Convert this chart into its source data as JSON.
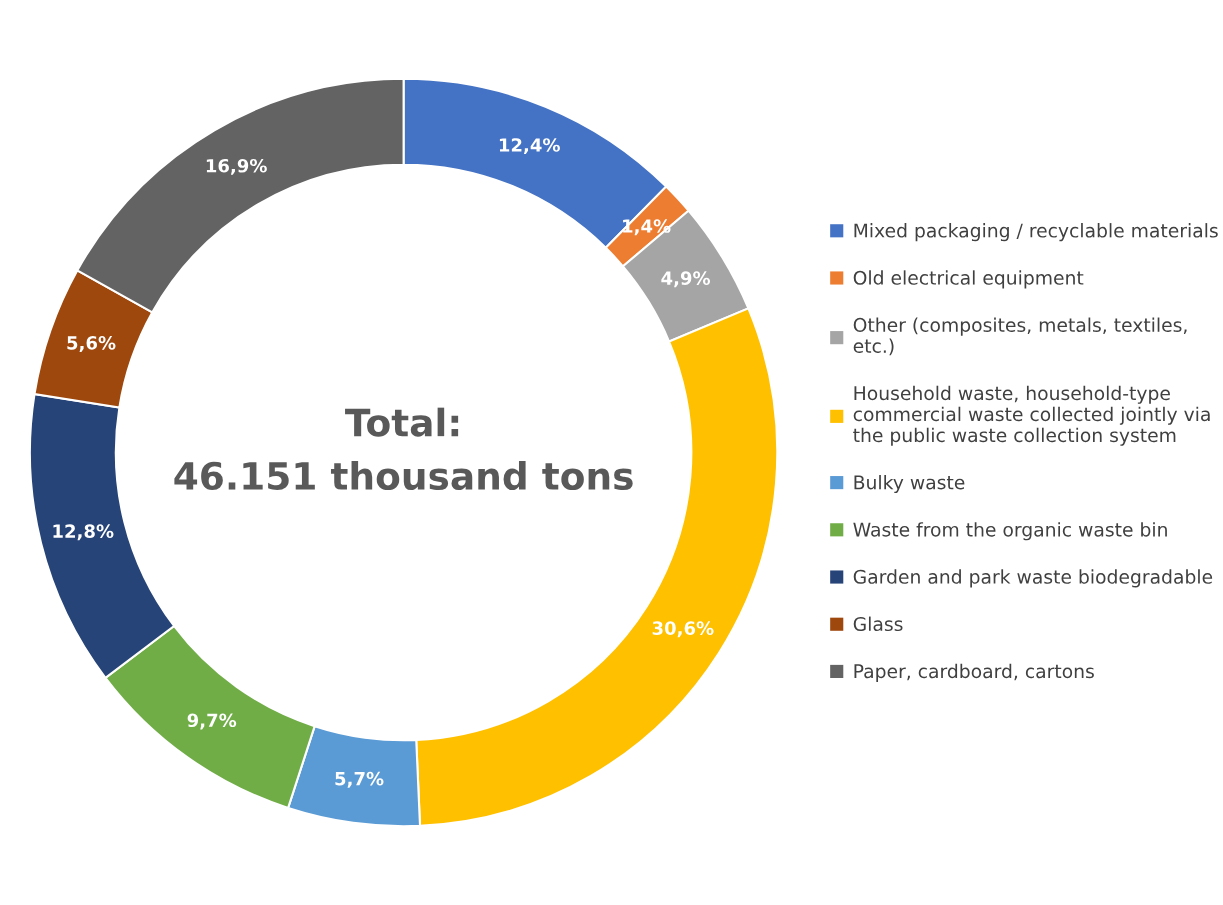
{
  "chart_data": {
    "type": "donut",
    "categories": [
      "Mixed packaging / recyclable materials",
      "Old electrical equipment",
      "Other (composites, metals, textiles,\netc.)",
      "Household waste, household-type\ncommercial waste collected jointly via\nthe public waste collection system",
      "Bulky waste",
      "Waste from the organic waste bin",
      "Garden and park waste biodegradable",
      "Glass",
      "Paper, cardboard, cartons"
    ],
    "values": [
      12.4,
      1.4,
      4.9,
      30.6,
      5.7,
      9.7,
      12.8,
      5.6,
      16.9
    ],
    "colors": [
      "#4472c4",
      "#ed7d31",
      "#a5a5a5",
      "#ffc000",
      "#5b9bd5",
      "#70ad47",
      "#264478",
      "#9e480e",
      "#636363"
    ],
    "value_labels": [
      "12,4%",
      "1,4%",
      "4,9%",
      "30,6%",
      "5,7%",
      "9,7%",
      "12,8%",
      "5,6%",
      "16,9%"
    ],
    "annotations": [
      "Total:\n46.151 thousand tons"
    ],
    "legend": "right"
  }
}
